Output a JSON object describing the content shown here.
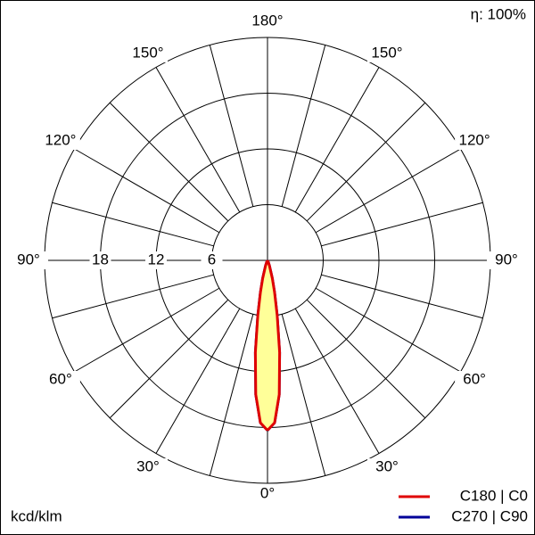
{
  "chart_data": {
    "type": "polar",
    "efficiency": "η: 100%",
    "unit_label": "kcd/klm",
    "rlim": [
      0,
      24
    ],
    "rticks": [
      6,
      12,
      18
    ],
    "ring_values": [
      6,
      12,
      18,
      24
    ],
    "angle_grid": 15,
    "angle_ticks": [
      {
        "value": 0,
        "label": "0°"
      },
      {
        "value": 30,
        "label": "30°"
      },
      {
        "value": 60,
        "label": "60°"
      },
      {
        "value": 90,
        "label": "90°"
      },
      {
        "value": 120,
        "label": "120°"
      },
      {
        "value": 150,
        "label": "150°"
      },
      {
        "value": 180,
        "label": "180°"
      }
    ],
    "angles": [
      0,
      2.5,
      5,
      7.5,
      10,
      12.5,
      15,
      20,
      25,
      30,
      45,
      60,
      90,
      120,
      150,
      180
    ],
    "fill_color": "#ffff99",
    "series": [
      {
        "name": "C270 | C90",
        "color": "#000099",
        "values": [
          18.3,
          17.5,
          14.5,
          10,
          6,
          3.5,
          2,
          0.6,
          0.2,
          0,
          0,
          0,
          0,
          0,
          0,
          0
        ]
      },
      {
        "name": "C180 | C0",
        "color": "#e00000",
        "values": [
          18.3,
          17.5,
          14.5,
          10,
          6,
          3.5,
          2,
          0.6,
          0.2,
          0,
          0,
          0,
          0,
          0,
          0,
          0
        ]
      }
    ]
  }
}
